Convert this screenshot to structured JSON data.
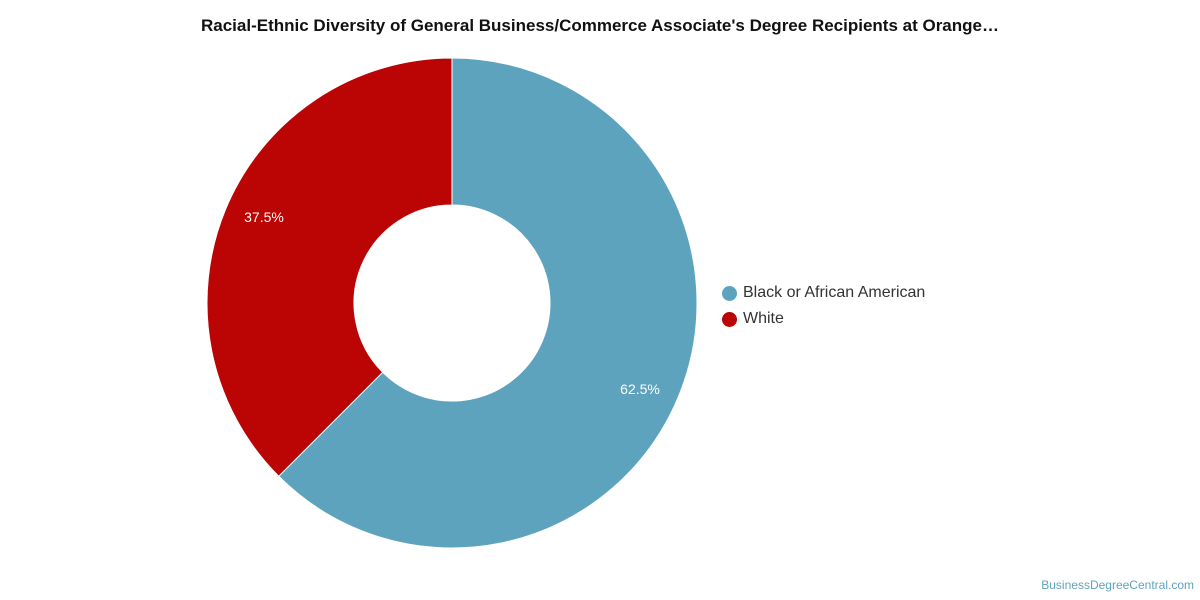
{
  "chart_data": {
    "type": "pie",
    "title": "Racial-Ethnic Diversity of General Business/Commerce Associate's Degree Recipients at Orange…",
    "slices": [
      {
        "label": "Black or African American",
        "value": 62.5,
        "color": "#5ea3be",
        "data_label": "62.5%"
      },
      {
        "label": "White",
        "value": 37.5,
        "color": "#bb0404",
        "data_label": "37.5%"
      }
    ],
    "donut": true,
    "legend_position": "right"
  },
  "footer": {
    "watermark": "BusinessDegreeCentral.com"
  }
}
